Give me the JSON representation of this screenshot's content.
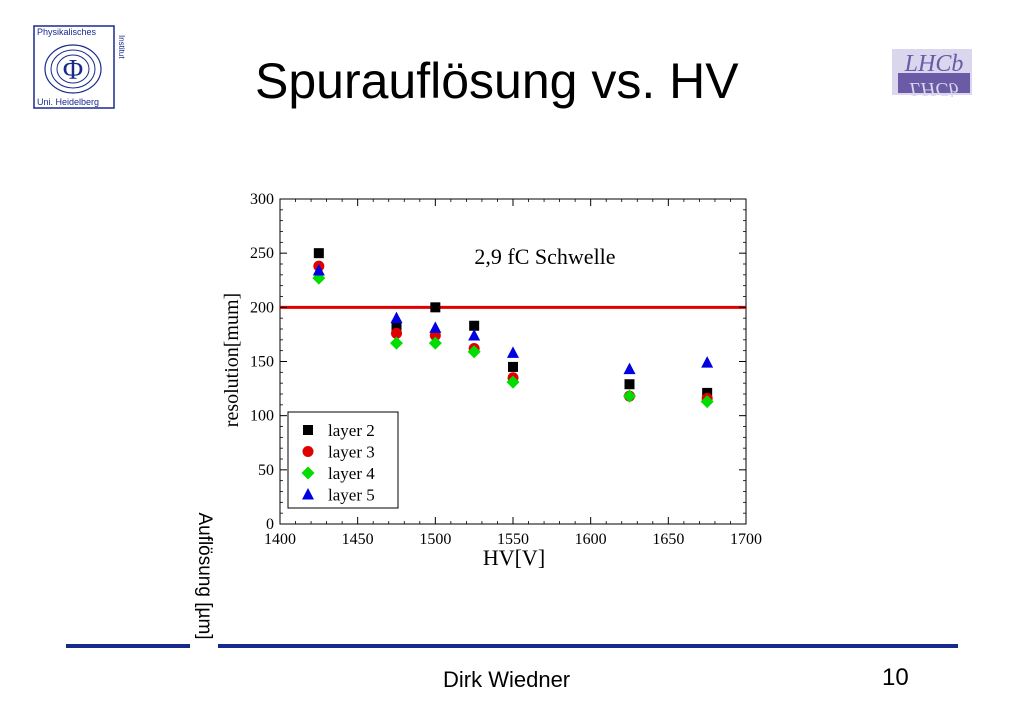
{
  "slide": {
    "title": "Spurauflösung vs. HV",
    "footer_name": "Dirk Wiedner",
    "page_number": "10",
    "rotated_label": "Auflösung [µm]",
    "rule_color": "#1a2a8c",
    "logo_left": {
      "lines": [
        "Physikalisches",
        "Uni. Heidelberg"
      ],
      "side_text": "Institut",
      "symbol": "Φ"
    },
    "logo_right": {
      "text": "LHCb",
      "color": "#6b5aa6"
    }
  },
  "chart_data": {
    "type": "scatter",
    "xlabel": "HV[V]",
    "ylabel": "resolution[mum]",
    "xlim": [
      1400,
      1700
    ],
    "ylim": [
      0,
      300
    ],
    "xticks": [
      1400,
      1450,
      1500,
      1550,
      1600,
      1650,
      1700
    ],
    "yticks": [
      0,
      50,
      100,
      150,
      200,
      250,
      300
    ],
    "annotation": "2,9 fC Schwelle",
    "threshold": {
      "y": 200,
      "color": "#e00000"
    },
    "legend_position": "bottom-left",
    "series": [
      {
        "name": "layer 2",
        "marker": "square",
        "color": "#000000",
        "points": [
          [
            1425,
            250
          ],
          [
            1475,
            183
          ],
          [
            1500,
            200
          ],
          [
            1525,
            183
          ],
          [
            1550,
            145
          ],
          [
            1625,
            129
          ],
          [
            1675,
            121
          ]
        ]
      },
      {
        "name": "layer 3",
        "marker": "circle",
        "color": "#e00000",
        "points": [
          [
            1425,
            238
          ],
          [
            1475,
            176
          ],
          [
            1500,
            174
          ],
          [
            1525,
            162
          ],
          [
            1550,
            135
          ],
          [
            1625,
            118
          ],
          [
            1675,
            116
          ]
        ]
      },
      {
        "name": "layer 4",
        "marker": "diamond",
        "color": "#00dd00",
        "points": [
          [
            1425,
            227
          ],
          [
            1475,
            167
          ],
          [
            1500,
            167
          ],
          [
            1525,
            159
          ],
          [
            1550,
            131
          ],
          [
            1625,
            118
          ],
          [
            1675,
            113
          ]
        ]
      },
      {
        "name": "layer 5",
        "marker": "triangle",
        "color": "#0000e0",
        "points": [
          [
            1425,
            234
          ],
          [
            1475,
            190
          ],
          [
            1500,
            181
          ],
          [
            1525,
            174
          ],
          [
            1550,
            158
          ],
          [
            1625,
            143
          ],
          [
            1675,
            149
          ]
        ]
      }
    ]
  }
}
